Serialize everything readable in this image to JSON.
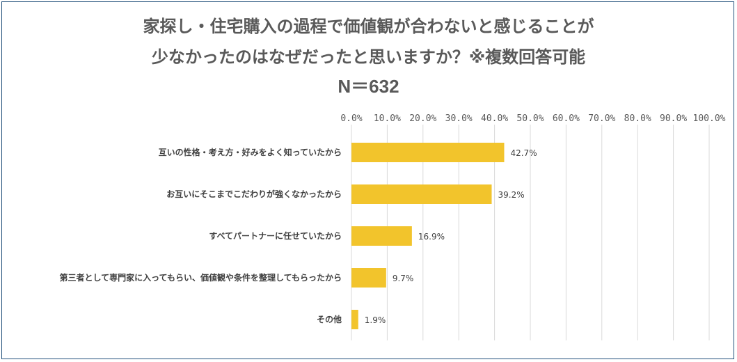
{
  "chart_data": {
    "type": "bar",
    "orientation": "horizontal",
    "title_line1": "家探し・住宅購入の過程で価値観が合わないと感じることが",
    "title_line2": "少なかったのはなぜだったと思いますか？※複数回答可能",
    "sample_size": "N＝632",
    "categories": [
      "互いの性格・考え方・好みをよく知っていたから",
      "お互いにそこまでこだわりが強くなかったから",
      "すべてパートナーに任せていたから",
      "第三者として専門家に入ってもらい、価値観や条件を整理してもらったから",
      "その他"
    ],
    "values": [
      42.7,
      39.2,
      16.9,
      9.7,
      1.9
    ],
    "value_labels": [
      "42.7%",
      "39.2%",
      "16.9%",
      "9.7%",
      "1.9%"
    ],
    "xlim": [
      0,
      100
    ],
    "xticks": [
      "0.0%",
      "10.0%",
      "20.0%",
      "30.0%",
      "40.0%",
      "50.0%",
      "60.0%",
      "70.0%",
      "80.0%",
      "90.0%",
      "100.0%"
    ],
    "bar_color": "#f2c42c",
    "grid": true,
    "grid_color": "#d9d9d9",
    "axis_position": "top",
    "legend": "none"
  }
}
